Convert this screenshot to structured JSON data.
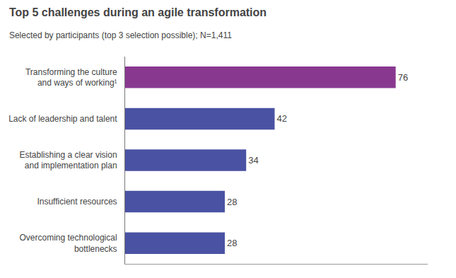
{
  "chart_data": {
    "type": "bar",
    "orientation": "horizontal",
    "title": "Top 5 challenges during an agile transformation",
    "subtitle": "Selected by participants (top 3 selection possible); N=1,411",
    "categories": [
      "Overcoming technological\nbottlenecks",
      "Insufficient resources",
      "Establishing a clear vision\nand implementation plan",
      "Lack of leadership and talent",
      "Transforming the culture\nand ways of working¹"
    ],
    "values": [
      28,
      28,
      34,
      42,
      76
    ],
    "colors": [
      "#4a52a3",
      "#4a52a3",
      "#4a52a3",
      "#4a52a3",
      "#893890"
    ],
    "data_labels": true,
    "xlim": [
      0,
      85
    ],
    "tick_labels": "y",
    "grid": false
  }
}
